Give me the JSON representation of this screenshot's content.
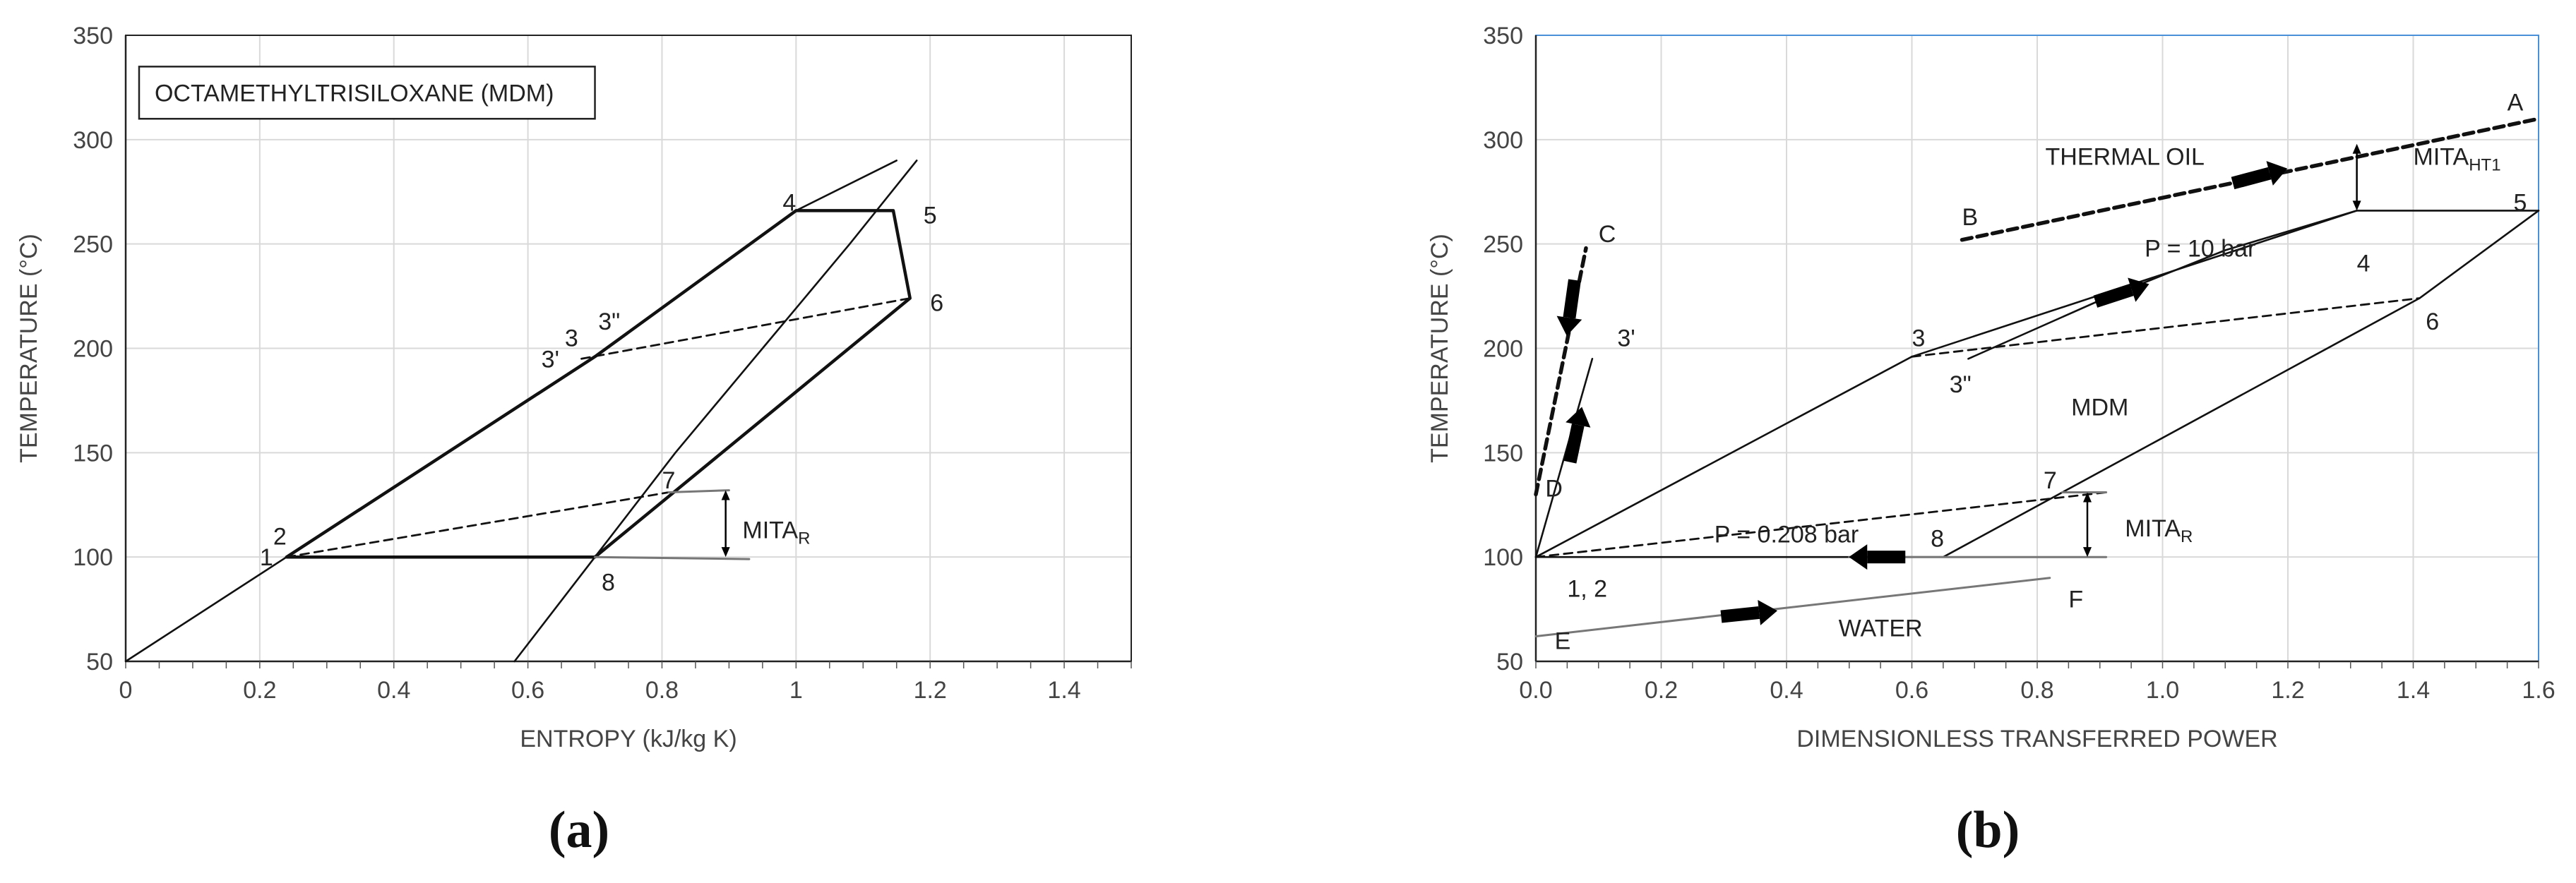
{
  "chart_data": [
    {
      "type": "line",
      "panel_label": "(a)",
      "xlabel": "ENTROPY (kJ/kg K)",
      "ylabel": "TEMPERATURE (°C)",
      "xlim": [
        0,
        1.5
      ],
      "ylim": [
        50,
        350
      ],
      "xticks": [
        0,
        0.2,
        0.4,
        0.6,
        0.8,
        1,
        1.2,
        1.4
      ],
      "xtick_labels": [
        "0",
        "0.2",
        "0.4",
        "0.6",
        "0.8",
        "1",
        "1.2",
        "1.4"
      ],
      "yticks": [
        50,
        100,
        150,
        200,
        250,
        300,
        350
      ],
      "grid": true,
      "title_box": "OCTAMETHYLTRISILOXANE (MDM)",
      "series": [
        {
          "style": "solid-thin",
          "x": [
            0,
            0.24,
            0.7,
            1.0,
            1.15
          ],
          "y": [
            50,
            100,
            196,
            266,
            290
          ]
        },
        {
          "style": "solid-thin",
          "x": [
            0.58,
            0.7,
            0.82,
            0.95,
            1.08,
            1.18
          ],
          "y": [
            50,
            100,
            150,
            200,
            250,
            290
          ]
        },
        {
          "style": "solid-thick",
          "x": [
            0.24,
            0.7,
            1.0,
            1.145,
            1.17,
            0.7,
            0.24
          ],
          "y": [
            100,
            196,
            266,
            266,
            224,
            100,
            100
          ]
        },
        {
          "style": "dashed",
          "x": [
            0.68,
            1.17
          ],
          "y": [
            195,
            224
          ]
        },
        {
          "style": "dashed",
          "x": [
            0.24,
            0.81
          ],
          "y": [
            100,
            131
          ]
        },
        {
          "style": "solid-gray",
          "x": [
            0.7,
            0.93
          ],
          "y": [
            100,
            99
          ]
        },
        {
          "style": "solid-gray",
          "x": [
            0.81,
            0.9
          ],
          "y": [
            131,
            132
          ]
        }
      ],
      "annotations": [
        {
          "text": "1",
          "x": 0.2,
          "y": 100
        },
        {
          "text": "2",
          "x": 0.22,
          "y": 110
        },
        {
          "text": "3'",
          "x": 0.62,
          "y": 195
        },
        {
          "text": "3",
          "x": 0.655,
          "y": 205
        },
        {
          "text": "3\"",
          "x": 0.705,
          "y": 213
        },
        {
          "text": "4",
          "x": 0.98,
          "y": 270
        },
        {
          "text": "5",
          "x": 1.19,
          "y": 264
        },
        {
          "text": "6",
          "x": 1.2,
          "y": 222
        },
        {
          "text": "7",
          "x": 0.8,
          "y": 137
        },
        {
          "text": "8",
          "x": 0.71,
          "y": 88
        },
        {
          "text": "MITA",
          "subscript": "R",
          "x": 0.92,
          "y": 113
        }
      ]
    },
    {
      "type": "line",
      "panel_label": "(b)",
      "xlabel": "DIMENSIONLESS TRANSFERRED POWER",
      "ylabel": "TEMPERATURE (°C)",
      "xlim": [
        0,
        1.6
      ],
      "ylim": [
        50,
        350
      ],
      "xticks": [
        0,
        0.2,
        0.4,
        0.6,
        0.8,
        1,
        1.2,
        1.4,
        1.6
      ],
      "xtick_labels": [
        "0.0",
        "0.2",
        "0.4",
        "0.6",
        "0.8",
        "1.0",
        "1.2",
        "1.4",
        "1.6"
      ],
      "yticks": [
        50,
        100,
        150,
        200,
        250,
        300,
        350
      ],
      "grid": true,
      "series": [
        {
          "name": "THERMAL OIL",
          "style": "dashed-thick",
          "x": [
            0.68,
            1.6
          ],
          "y": [
            252,
            310
          ]
        },
        {
          "style": "dashed-thick",
          "x": [
            0.0,
            0.08
          ],
          "y": [
            130,
            248
          ]
        },
        {
          "style": "solid-thin",
          "x": [
            0.0,
            0.09
          ],
          "y": [
            100,
            195
          ]
        },
        {
          "style": "solid-thin",
          "x": [
            0.0,
            0.6,
            1.31,
            1.6
          ],
          "y": [
            100,
            196,
            266,
            266
          ]
        },
        {
          "style": "solid-thin",
          "x": [
            0.69,
            0.9,
            1.1,
            1.31
          ],
          "y": [
            195,
            223,
            247,
            266
          ]
        },
        {
          "style": "solid-thin",
          "x": [
            0.0,
            0.65,
            1.41,
            1.6
          ],
          "y": [
            100,
            100,
            224,
            266
          ]
        },
        {
          "style": "dashed",
          "x": [
            0.6,
            1.41
          ],
          "y": [
            196,
            224
          ]
        },
        {
          "style": "dashed",
          "x": [
            0.0,
            0.91
          ],
          "y": [
            100,
            131
          ]
        },
        {
          "name": "WATER",
          "style": "solid-gray",
          "x": [
            0.0,
            0.82
          ],
          "y": [
            62,
            90
          ]
        },
        {
          "style": "solid-gray",
          "x": [
            0.5,
            0.91
          ],
          "y": [
            100,
            100
          ]
        },
        {
          "style": "solid-gray",
          "x": [
            0.84,
            0.91
          ],
          "y": [
            131,
            131
          ]
        }
      ],
      "annotations": [
        {
          "text": "A",
          "x": 1.55,
          "y": 318
        },
        {
          "text": "B",
          "x": 0.68,
          "y": 263
        },
        {
          "text": "C",
          "x": 0.1,
          "y": 255
        },
        {
          "text": "D",
          "x": 0.015,
          "y": 133
        },
        {
          "text": "E",
          "x": 0.03,
          "y": 60
        },
        {
          "text": "F",
          "x": 0.85,
          "y": 80
        },
        {
          "text": "1, 2",
          "x": 0.05,
          "y": 85
        },
        {
          "text": "3",
          "x": 0.6,
          "y": 205
        },
        {
          "text": "3'",
          "x": 0.13,
          "y": 205
        },
        {
          "text": "3\"",
          "x": 0.66,
          "y": 183
        },
        {
          "text": "4",
          "x": 1.31,
          "y": 241
        },
        {
          "text": "5",
          "x": 1.56,
          "y": 270
        },
        {
          "text": "6",
          "x": 1.42,
          "y": 213
        },
        {
          "text": "7",
          "x": 0.81,
          "y": 137
        },
        {
          "text": "8",
          "x": 0.63,
          "y": 109
        },
        {
          "text": "THERMAL OIL",
          "x": 0.94,
          "y": 292
        },
        {
          "text": "P = 10 bar",
          "x": 1.06,
          "y": 248
        },
        {
          "text": "MDM",
          "x": 0.9,
          "y": 172
        },
        {
          "text": "P = 0.208 bar",
          "x": 0.4,
          "y": 111
        },
        {
          "text": "WATER",
          "x": 0.55,
          "y": 66
        },
        {
          "text": "MITA",
          "subscript": "HT1",
          "x": 1.4,
          "y": 292
        },
        {
          "text": "MITA",
          "subscript": "R",
          "x": 0.94,
          "y": 114
        }
      ]
    }
  ]
}
